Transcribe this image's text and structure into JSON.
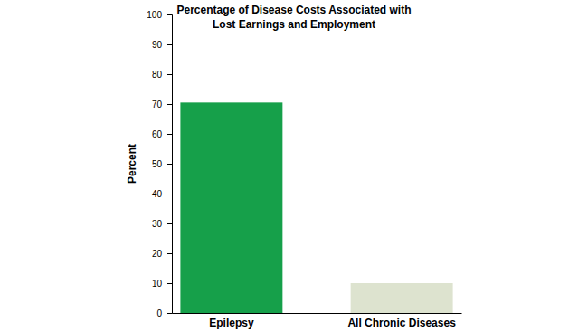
{
  "chart_data": {
    "type": "bar",
    "title": "Percentage of Disease Costs Associated with Lost Earnings and Employment",
    "y_label": "Percent",
    "categories": [
      "Epilepsy",
      "All Chronic Diseases"
    ],
    "values": [
      70.5,
      10
    ],
    "colors": [
      "#16a04a",
      "#dde3cf"
    ],
    "ylim": [
      0,
      100
    ],
    "yticks": [
      0,
      10,
      20,
      30,
      40,
      50,
      60,
      70,
      80,
      90,
      100
    ],
    "grid": false
  }
}
